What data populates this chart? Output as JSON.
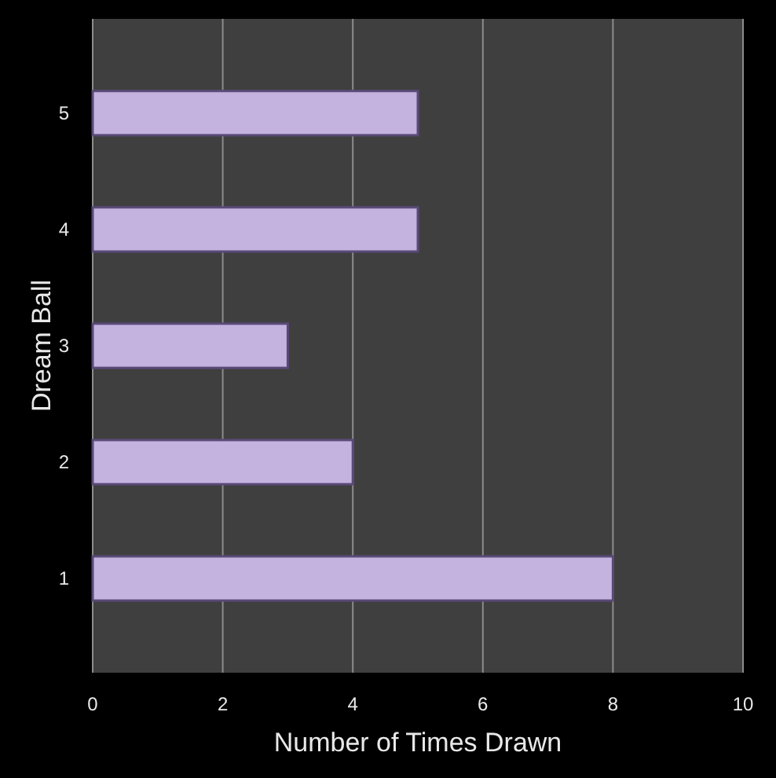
{
  "chart_data": {
    "type": "bar",
    "orientation": "horizontal",
    "categories": [
      "5",
      "4",
      "3",
      "2",
      "1"
    ],
    "values": [
      5,
      5,
      3,
      4,
      8
    ],
    "color": "#c4b3df",
    "xlim": [
      0,
      10
    ],
    "xticks": [
      0,
      2,
      4,
      6,
      8,
      10
    ],
    "xlabel": "Number of Times Drawn",
    "ylabel": "Dream Ball",
    "grid": "x"
  }
}
